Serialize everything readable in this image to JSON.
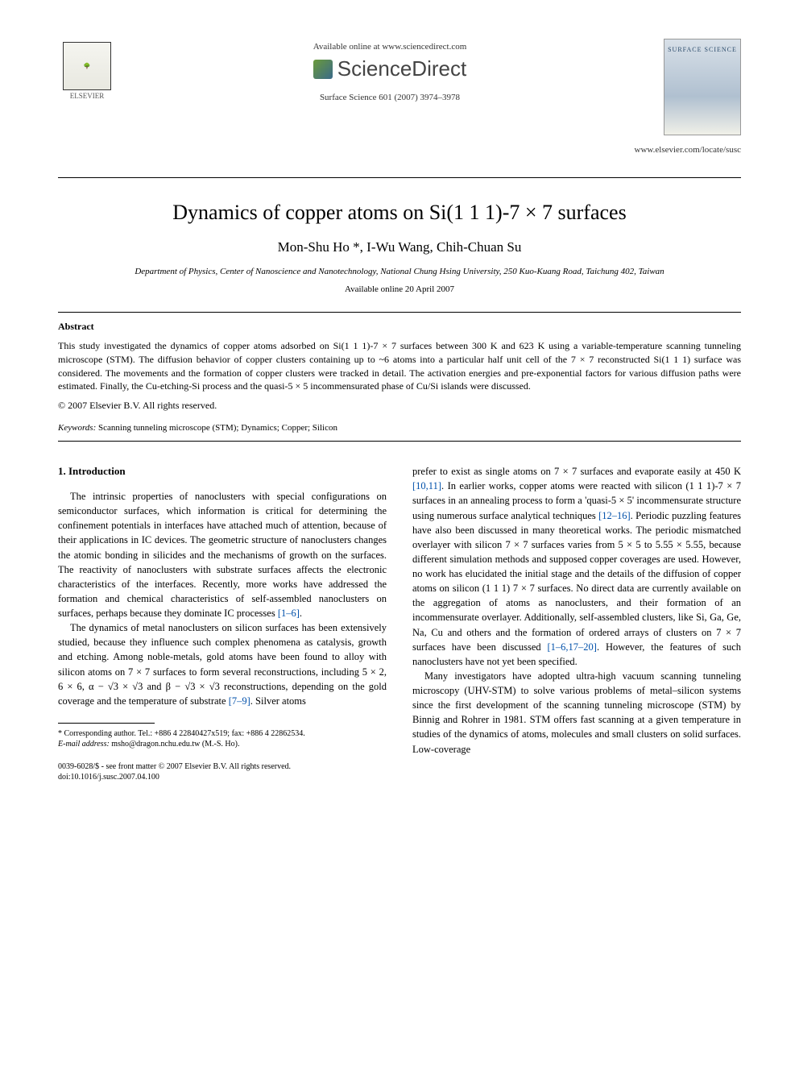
{
  "header": {
    "available_online": "Available online at www.sciencedirect.com",
    "sciencedirect": "ScienceDirect",
    "citation": "Surface Science 601 (2007) 3974–3978",
    "locate_url": "www.elsevier.com/locate/susc",
    "publisher_name": "ELSEVIER",
    "journal_cover_title": "SURFACE SCIENCE"
  },
  "article": {
    "title": "Dynamics of copper atoms on Si(1 1 1)-7 × 7 surfaces",
    "authors": "Mon-Shu Ho *, I-Wu Wang, Chih-Chuan Su",
    "affiliation": "Department of Physics, Center of Nanoscience and Nanotechnology, National Chung Hsing University, 250 Kuo-Kuang Road, Taichung 402, Taiwan",
    "available_date": "Available online 20 April 2007"
  },
  "abstract": {
    "label": "Abstract",
    "text": "This study investigated the dynamics of copper atoms adsorbed on Si(1 1 1)-7 × 7 surfaces between 300 K and 623 K using a variable-temperature scanning tunneling microscope (STM). The diffusion behavior of copper clusters containing up to ~6 atoms into a particular half unit cell of the 7 × 7 reconstructed Si(1 1 1) surface was considered. The movements and the formation of copper clusters were tracked in detail. The activation energies and pre-exponential factors for various diffusion paths were estimated. Finally, the Cu-etching-Si process and the quasi-5 × 5 incommensurated phase of Cu/Si islands were discussed.",
    "copyright": "© 2007 Elsevier B.V. All rights reserved."
  },
  "keywords": {
    "label": "Keywords:",
    "text": " Scanning tunneling microscope (STM); Dynamics; Copper; Silicon"
  },
  "body": {
    "section_head": "1. Introduction",
    "left_p1": "The intrinsic properties of nanoclusters with special configurations on semiconductor surfaces, which information is critical for determining the confinement potentials in interfaces have attached much of attention, because of their applications in IC devices. The geometric structure of nanoclusters changes the atomic bonding in silicides and the mechanisms of growth on the surfaces. The reactivity of nanoclusters with substrate surfaces affects the electronic characteristics of the interfaces. Recently, more works have addressed the formation and chemical characteristics of self-assembled nanoclusters on surfaces, perhaps because they dominate IC processes ",
    "left_ref1": "[1–6]",
    "left_p2a": "The dynamics of metal nanoclusters on silicon surfaces has been extensively studied, because they influence such complex phenomena as catalysis, growth and etching. Among noble-metals, gold atoms have been found to alloy with silicon atoms on 7 × 7 surfaces to form several reconstructions, including 5 × 2, 6 × 6, α − √3 × √3 and β − √3 × √3 reconstructions, depending on the gold coverage and the temperature of substrate ",
    "left_ref2": "[7–9]",
    "left_p2b": ". Silver atoms",
    "right_p1a": "prefer to exist as single atoms on 7 × 7 surfaces and evaporate easily at 450 K ",
    "right_ref1": "[10,11]",
    "right_p1b": ". In earlier works, copper atoms were reacted with silicon (1 1 1)-7 × 7 surfaces in an annealing process to form a 'quasi-5 × 5' incommensurate structure using numerous surface analytical techniques ",
    "right_ref2": "[12–16]",
    "right_p1c": ". Periodic puzzling features have also been discussed in many theoretical works. The periodic mismatched overlayer with silicon 7 × 7 surfaces varies from 5 × 5 to 5.55 × 5.55, because different simulation methods and supposed copper coverages are used. However, no work has elucidated the initial stage and the details of the diffusion of copper atoms on silicon (1 1 1) 7 × 7 surfaces. No direct data are currently available on the aggregation of atoms as nanoclusters, and their formation of an incommensurate overlayer. Additionally, self-assembled clusters, like Si, Ga, Ge, Na, Cu and others and the formation of ordered arrays of clusters on 7 × 7 surfaces have been discussed ",
    "right_ref3": "[1–6,17–20]",
    "right_p1d": ". However, the features of such nanoclusters have not yet been specified.",
    "right_p2": "Many investigators have adopted ultra-high vacuum scanning tunneling microscopy (UHV-STM) to solve various problems of metal–silicon systems since the first development of the scanning tunneling microscope (STM) by Binnig and Rohrer in 1981. STM offers fast scanning at a given temperature in studies of the dynamics of atoms, molecules and small clusters on solid surfaces. Low-coverage"
  },
  "footnote": {
    "corresponding": "* Corresponding author. Tel.: +886 4 22840427x519; fax: +886 4 22862534.",
    "email_label": "E-mail address:",
    "email": " msho@dragon.nchu.edu.tw (M.-S. Ho)."
  },
  "doi": {
    "line1": "0039-6028/$ - see front matter © 2007 Elsevier B.V. All rights reserved.",
    "line2": "doi:10.1016/j.susc.2007.04.100"
  }
}
